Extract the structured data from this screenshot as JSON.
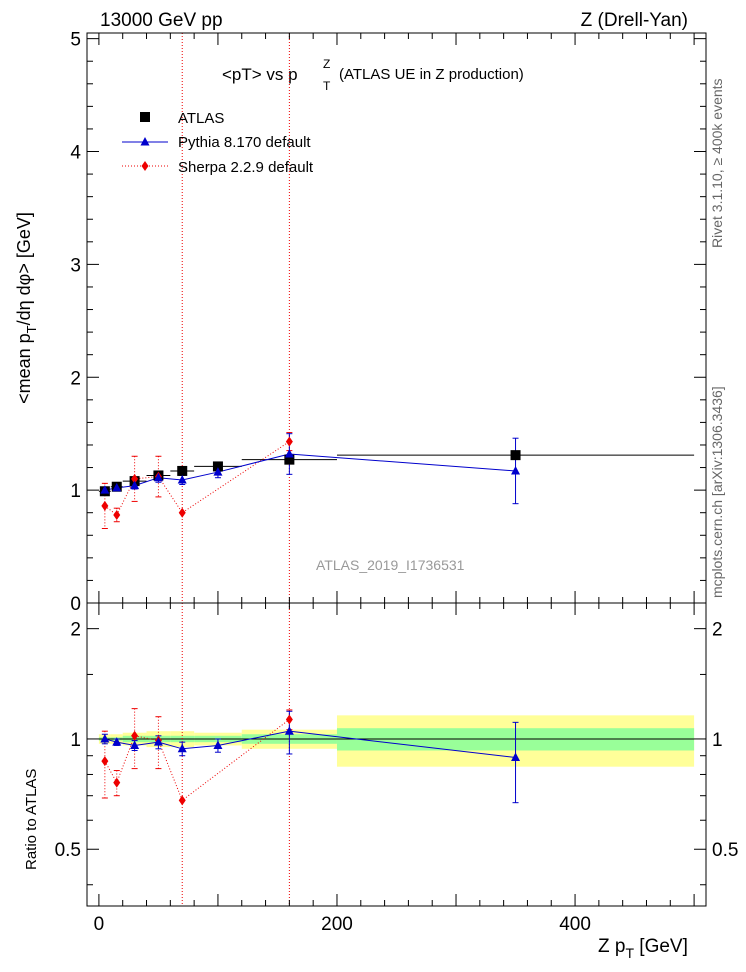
{
  "header": {
    "left": "13000 GeV pp",
    "right": "Z (Drell-Yan)"
  },
  "title": {
    "main": "<pT> vs p",
    "sup": "Z",
    "sub": "T",
    "rest": "(ATLAS UE in Z production)"
  },
  "side_text": {
    "rivet": "Rivet 3.1.10, ≥ 400k events",
    "mcplots": "mcplots.cern.ch [arXiv:1306.3436]"
  },
  "watermark": "ATLAS_2019_I1736531",
  "colors": {
    "data": "#000000",
    "pythia": "#0000cc",
    "sherpa": "#ee0000",
    "band_inner": "#99ff99",
    "band_outer": "#ffff99"
  },
  "chart_data": [
    {
      "type": "scatter",
      "panel": "main",
      "ylabel": "<mean p_T/dη dφ> [GeV]",
      "ylim": [
        0,
        5.05
      ],
      "y_ticks": [
        "0",
        "1",
        "2",
        "3",
        "4",
        "5"
      ],
      "legend": [
        "ATLAS",
        "Pythia 8.170 default",
        "Sherpa 2.2.9 default"
      ],
      "legend_placement": "top-left",
      "series": [
        {
          "name": "ATLAS",
          "x": [
            5,
            15,
            30,
            50,
            70,
            100,
            160,
            350
          ],
          "y": [
            0.99,
            1.03,
            1.08,
            1.13,
            1.17,
            1.21,
            1.27,
            1.31
          ],
          "xerr": [
            5,
            5,
            10,
            10,
            10,
            20,
            40,
            150
          ],
          "yerr": [
            0.02,
            0.02,
            0.02,
            0.02,
            0.02,
            0.02,
            0.03,
            0.04
          ]
        },
        {
          "name": "Pythia 8.170 default",
          "x": [
            5,
            15,
            30,
            50,
            70,
            100,
            160,
            350
          ],
          "y": [
            1.0,
            1.02,
            1.04,
            1.11,
            1.09,
            1.16,
            1.32,
            1.17
          ],
          "yerr": [
            0.02,
            0.02,
            0.03,
            0.04,
            0.04,
            0.05,
            0.18,
            0.29
          ]
        },
        {
          "name": "Sherpa 2.2.9 default",
          "x": [
            5,
            15,
            30,
            50,
            70,
            160
          ],
          "y": [
            0.86,
            0.78,
            1.1,
            1.12,
            0.8,
            1.43
          ],
          "yerr": [
            0.2,
            0.06,
            0.2,
            0.18,
            0.0,
            0.08
          ]
        }
      ]
    },
    {
      "type": "scatter",
      "panel": "ratio",
      "xlabel": "Z p_T [GeV]",
      "ylabel": "Ratio to ATLAS",
      "xlim": [
        -10,
        510
      ],
      "ylim": [
        0.35,
        2.35
      ],
      "y_scale": "log",
      "x_ticks": [
        "0",
        "200",
        "400"
      ],
      "y_ticks": [
        "0.5",
        "1",
        "2"
      ],
      "bands": {
        "edges": [
          0,
          10,
          20,
          40,
          60,
          80,
          120,
          200,
          500
        ],
        "inner": [
          0.01,
          0.01,
          0.02,
          0.02,
          0.02,
          0.02,
          0.03,
          0.07
        ],
        "outer": [
          0.03,
          0.03,
          0.04,
          0.05,
          0.05,
          0.04,
          0.06,
          0.16
        ]
      },
      "series": [
        {
          "name": "Pythia 8.170 default",
          "x": [
            5,
            15,
            30,
            50,
            70,
            100,
            160,
            350
          ],
          "y": [
            1.0,
            0.98,
            0.96,
            0.98,
            0.94,
            0.96,
            1.05,
            0.89
          ],
          "yerr": [
            0.03,
            0.02,
            0.03,
            0.04,
            0.04,
            0.04,
            0.14,
            0.22
          ]
        },
        {
          "name": "Sherpa 2.2.9 default",
          "x": [
            5,
            15,
            30,
            50,
            70,
            160
          ],
          "y": [
            0.87,
            0.76,
            1.02,
            0.99,
            0.68,
            1.13
          ],
          "yerr": [
            0.18,
            0.06,
            0.19,
            0.16,
            0.0,
            0.07
          ]
        }
      ]
    }
  ],
  "vlines": [
    70,
    160
  ]
}
